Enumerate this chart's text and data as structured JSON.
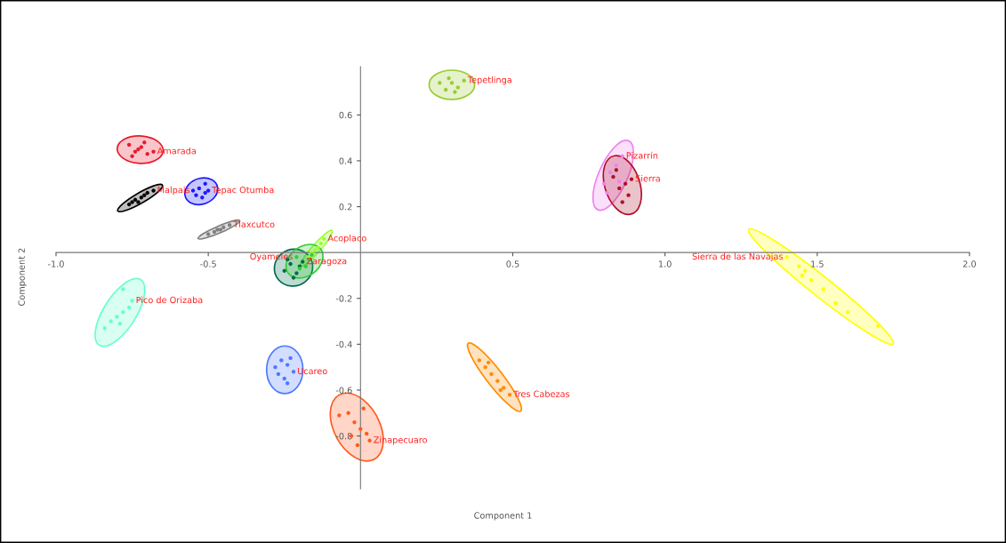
{
  "chart_data": {
    "type": "scatter",
    "xlabel": "Component 1",
    "ylabel": "Component 2",
    "xlim": [
      -1.0,
      2.0
    ],
    "ylim": [
      -1.03,
      0.81
    ],
    "xticks": [
      {
        "value": -1.0,
        "label": "-1.0"
      },
      {
        "value": -0.5,
        "label": "-0.5"
      },
      {
        "value": 0.5,
        "label": "0.5"
      },
      {
        "value": 1.0,
        "label": "1.0"
      },
      {
        "value": 1.5,
        "label": "1.5"
      },
      {
        "value": 2.0,
        "label": "2.0"
      }
    ],
    "yticks": [
      -0.8,
      -0.6,
      -0.4,
      -0.2,
      0.2,
      0.4,
      0.6
    ],
    "grid": false,
    "legend": false,
    "marker": "circle",
    "series": [
      {
        "name": "Amarada",
        "color": "#e8192c",
        "x": [
          -0.76,
          -0.74,
          -0.72,
          -0.7,
          -0.75,
          -0.71,
          -0.73,
          -0.68
        ],
        "values": [
          0.47,
          0.44,
          0.46,
          0.43,
          0.42,
          0.48,
          0.45,
          0.44
        ]
      },
      {
        "name": "Malpais",
        "color": "#000000",
        "x": [
          -0.76,
          -0.74,
          -0.72,
          -0.7,
          -0.68,
          -0.73,
          -0.71,
          -0.75
        ],
        "values": [
          0.21,
          0.23,
          0.24,
          0.26,
          0.27,
          0.22,
          0.25,
          0.22
        ]
      },
      {
        "name": "Tepac Otumba",
        "color": "#1a1aff",
        "x": [
          -0.54,
          -0.53,
          -0.51,
          -0.5,
          -0.52,
          -0.55,
          -0.51
        ],
        "values": [
          0.25,
          0.28,
          0.3,
          0.27,
          0.24,
          0.27,
          0.26
        ]
      },
      {
        "name": "Tlaxcutco",
        "color": "#808080",
        "x": [
          -0.5,
          -0.48,
          -0.46,
          -0.45,
          -0.43,
          -0.47
        ],
        "values": [
          0.08,
          0.09,
          0.1,
          0.11,
          0.12,
          0.1
        ]
      },
      {
        "name": "Tepetlinga",
        "color": "#99cc33",
        "x": [
          0.26,
          0.28,
          0.3,
          0.32,
          0.34,
          0.31,
          0.29
        ],
        "values": [
          0.74,
          0.71,
          0.74,
          0.72,
          0.75,
          0.7,
          0.76
        ]
      },
      {
        "name": "Acoplaco",
        "color": "#99ff33",
        "x": [
          -0.17,
          -0.15,
          -0.13,
          -0.12,
          -0.14,
          -0.16
        ],
        "values": [
          -0.02,
          0.01,
          0.04,
          0.06,
          0.02,
          0.0
        ]
      },
      {
        "name": "Zaragoza",
        "color": "#006a4e",
        "x": [
          -0.25,
          -0.23,
          -0.21,
          -0.2,
          -0.22,
          -0.24,
          -0.19
        ],
        "values": [
          -0.08,
          -0.05,
          -0.09,
          -0.06,
          -0.11,
          -0.03,
          -0.04
        ]
      },
      {
        "name": "Oyameles",
        "color": "#33cc33",
        "x": [
          -0.21,
          -0.18,
          -0.17,
          -0.2,
          -0.16
        ],
        "values": [
          -0.02,
          -0.06,
          -0.03,
          -0.07,
          -0.01
        ]
      },
      {
        "name": "Pico de Orizaba",
        "color": "#66ffcc",
        "x": [
          -0.84,
          -0.82,
          -0.8,
          -0.78,
          -0.76,
          -0.79,
          -0.75,
          -0.78
        ],
        "values": [
          -0.33,
          -0.3,
          -0.28,
          -0.26,
          -0.24,
          -0.31,
          -0.21,
          -0.16
        ]
      },
      {
        "name": "Ucareo",
        "color": "#4d79ff",
        "x": [
          -0.28,
          -0.26,
          -0.24,
          -0.22,
          -0.25,
          -0.27,
          -0.23,
          -0.24
        ],
        "values": [
          -0.5,
          -0.47,
          -0.49,
          -0.52,
          -0.55,
          -0.53,
          -0.46,
          -0.57
        ]
      },
      {
        "name": "Zinapecuaro",
        "color": "#ff5a1f",
        "x": [
          -0.07,
          -0.04,
          -0.02,
          0.0,
          0.02,
          -0.03,
          0.03,
          0.01,
          -0.01
        ],
        "values": [
          -0.71,
          -0.7,
          -0.74,
          -0.77,
          -0.79,
          -0.8,
          -0.82,
          -0.68,
          -0.84
        ]
      },
      {
        "name": "Tres Cabezas",
        "color": "#ff8c00",
        "x": [
          0.39,
          0.41,
          0.43,
          0.45,
          0.47,
          0.49,
          0.42,
          0.46
        ],
        "values": [
          -0.47,
          -0.5,
          -0.53,
          -0.56,
          -0.59,
          -0.62,
          -0.48,
          -0.6
        ]
      },
      {
        "name": "Sierra de las Navajas",
        "color": "#ffff00",
        "x": [
          1.4,
          1.44,
          1.46,
          1.48,
          1.52,
          1.56,
          1.6,
          1.7,
          1.45
        ],
        "values": [
          -0.02,
          -0.06,
          -0.08,
          -0.12,
          -0.16,
          -0.22,
          -0.26,
          -0.32,
          -0.1
        ]
      },
      {
        "name": "Pizarrín",
        "color": "#ee82ee",
        "x": [
          0.8,
          0.82,
          0.84,
          0.86,
          0.81,
          0.85
        ],
        "values": [
          0.3,
          0.35,
          0.38,
          0.42,
          0.26,
          0.31
        ]
      },
      {
        "name": "Sierra",
        "color": "#b0102a",
        "x": [
          0.83,
          0.85,
          0.87,
          0.88,
          0.84,
          0.89,
          0.86
        ],
        "values": [
          0.33,
          0.28,
          0.3,
          0.25,
          0.36,
          0.32,
          0.22
        ]
      }
    ]
  }
}
